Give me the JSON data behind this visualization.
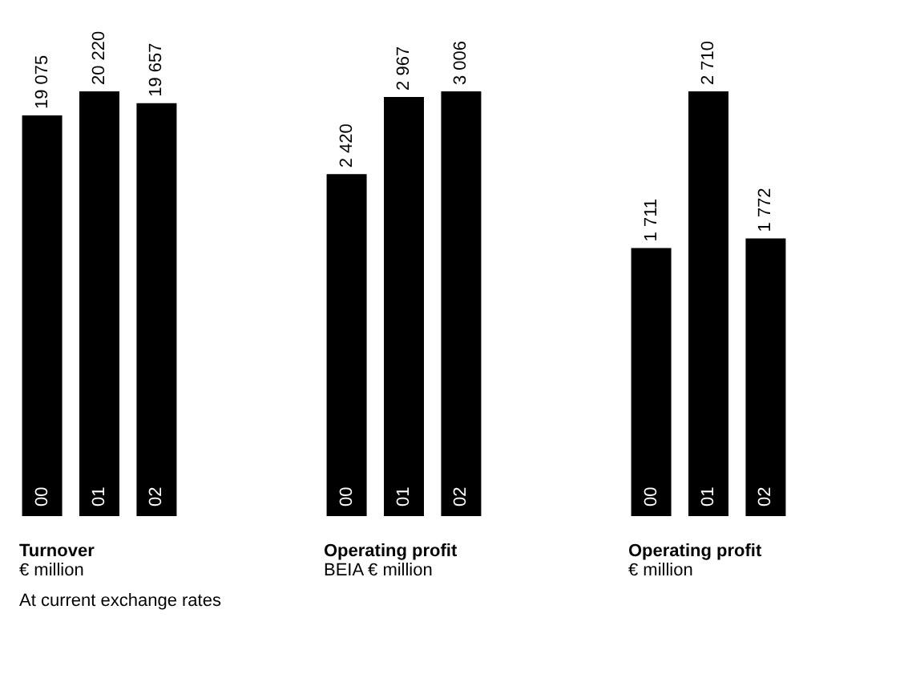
{
  "chart_data": [
    {
      "type": "bar",
      "title": "Turnover",
      "subtitle": "€ million",
      "categories": [
        "00",
        "01",
        "02"
      ],
      "values": [
        19075,
        20220,
        19657
      ],
      "value_labels": [
        "19 075",
        "20 220",
        "19 657"
      ],
      "color": "#000000",
      "annotations": [
        "At current exchange rates"
      ]
    },
    {
      "type": "bar",
      "title": "Operating profit",
      "subtitle": "BEIA € million",
      "categories": [
        "00",
        "01",
        "02"
      ],
      "values": [
        2420,
        2967,
        3006
      ],
      "value_labels": [
        "2 420",
        "2 967",
        "3 006"
      ],
      "color": "#000000"
    },
    {
      "type": "bar",
      "title": "Operating profit",
      "subtitle": "€ million",
      "categories": [
        "00",
        "01",
        "02"
      ],
      "values": [
        1711,
        2710,
        1772
      ],
      "value_labels": [
        "1 711",
        "2 710",
        "1 772"
      ],
      "color": "#000000"
    }
  ]
}
